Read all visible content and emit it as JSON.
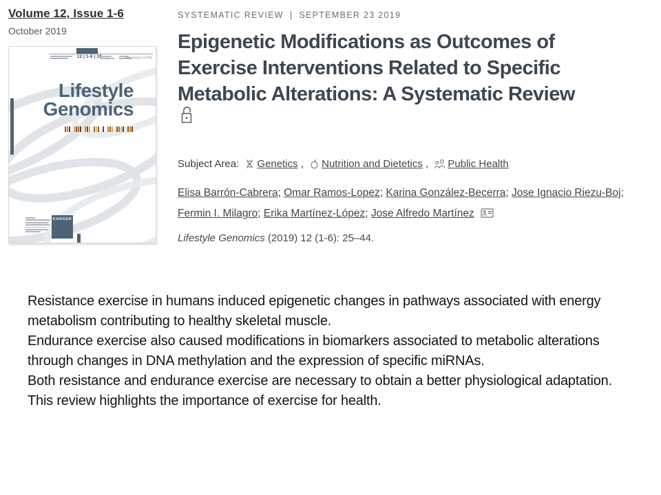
{
  "colors": {
    "title_color": "#3d4751",
    "eyebrow_color": "#6e6e6e",
    "link_color": "#464646",
    "slate_color": "#4e6377",
    "body_color": "#141414"
  },
  "issue_panel": {
    "volume": "Volume 12, Issue 1-6",
    "date": "October 2019"
  },
  "cover": {
    "masthead_numbers": "12 | 1-6 | 19",
    "website": "www.karger.com/lfg",
    "title_line1": "Lifestyle",
    "title_line2": "Genomics",
    "publisher": "KARGER",
    "barcode_colors": [
      "#9c5a22",
      "#c8822e",
      "#6f3a1f",
      "gap",
      "#d9a94e",
      "#8a4a22",
      "#b36a28",
      "#5f3a20",
      "gap",
      "#c8822e",
      "#7a3b23",
      "#d9a94e",
      "gap",
      "#9c5a22",
      "#e0c05e",
      "#8a4a22",
      "gap",
      "#6f3a1f",
      "gap",
      "#c8822e",
      "#9c5a22",
      "#d9a94e",
      "gap",
      "#8a4a22",
      "#b36a28",
      "#e0c05e",
      "#6f3a1f",
      "gap",
      "#9c5a22",
      "#c8822e",
      "#7a3b23"
    ]
  },
  "article": {
    "type": "SYSTEMATIC REVIEW",
    "meta_separator": "|",
    "date": "SEPTEMBER 23 2019",
    "title": "Epigenetic Modifications as Outcomes of Exercise Interventions Related to Specific Metabolic Alterations: A Systematic Review",
    "title_lines": [
      "Epigenetic Modifications as Outcomes of",
      "Exercise Interventions Related to Specific",
      "Metabolic Alterations: A Systematic Review"
    ],
    "subject_area_label": "Subject Area:",
    "subject_separator": " , ",
    "subjects": [
      {
        "label": "Genetics",
        "icon": "dna-icon"
      },
      {
        "label": "Nutrition and Dietetics",
        "icon": "apple-icon"
      },
      {
        "label": "Public Health",
        "icon": "people-icon"
      }
    ],
    "authors": [
      "Elisa Barrón-Cabrera",
      "Omar Ramos-Lopez",
      "Karina González-Becerra",
      "Jose Ignacio Riezu-Boj",
      "Fermin I. Milagro",
      "Erika Martínez-López",
      "Jose Alfredo Martínez"
    ],
    "author_separator": "; ",
    "citation_journal": "Lifestyle Genomics",
    "citation_rest": " (2019) 12 (1-6): 25–44."
  },
  "highlights": [
    "Resistance exercise in humans induced epigenetic changes in pathways associated with energy metabolism contributing to healthy skeletal muscle.",
    "Endurance exercise also caused modifications in biomarkers associated to metabolic alterations through changes in DNA methylation and the expression of specific miRNAs.",
    "Both resistance and endurance exercise are necessary to obtain a better physiological adaptation.",
    "This review highlights the importance of exercise for health."
  ]
}
